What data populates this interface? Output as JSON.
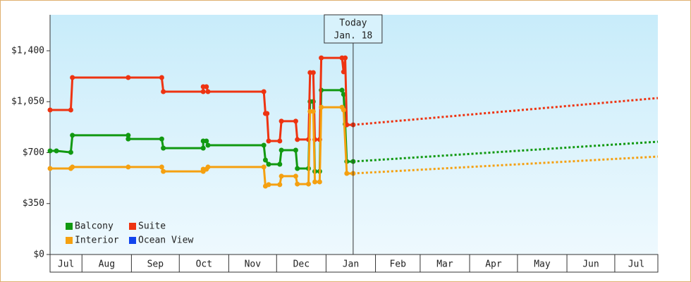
{
  "chart_data": {
    "type": "line",
    "xlim": [
      11,
      392
    ],
    "ylim": [
      0,
      1647
    ],
    "yticks": [
      {
        "value": 0,
        "label": "$0"
      },
      {
        "value": 350,
        "label": "$350"
      },
      {
        "value": 700,
        "label": "$700"
      },
      {
        "value": 1050,
        "label": "$1,050"
      },
      {
        "value": 1400,
        "label": "$1,400"
      }
    ],
    "xticks": [
      {
        "value": 0,
        "label": "Jul"
      },
      {
        "value": 31,
        "label": "Aug"
      },
      {
        "value": 62,
        "label": "Sep"
      },
      {
        "value": 92,
        "label": "Oct"
      },
      {
        "value": 123,
        "label": "Nov"
      },
      {
        "value": 153,
        "label": "Dec"
      },
      {
        "value": 184,
        "label": "Jan"
      },
      {
        "value": 215,
        "label": "Feb"
      },
      {
        "value": 243,
        "label": "Mar"
      },
      {
        "value": 274,
        "label": "Apr"
      },
      {
        "value": 304,
        "label": "May"
      },
      {
        "value": 335,
        "label": "Jun"
      },
      {
        "value": 365,
        "label": "Jul"
      }
    ],
    "annotation": {
      "x": 201,
      "lines": [
        "Today",
        "Jan. 18"
      ]
    },
    "legend": "lower left",
    "series": [
      {
        "name": "Balcony",
        "color": "#119911",
        "x": [
          11,
          15,
          24,
          25,
          60,
          60,
          81,
          82,
          107,
          107,
          109,
          110,
          145,
          146,
          148,
          155,
          156,
          165,
          166,
          173,
          174,
          176,
          177,
          180,
          181,
          194,
          195,
          196,
          197,
          201
        ],
        "values": [
          712,
          712,
          702,
          819,
          819,
          794,
          794,
          731,
          731,
          780,
          780,
          751,
          751,
          649,
          620,
          620,
          717,
          717,
          591,
          591,
          1051,
          1051,
          571,
          571,
          1129,
          1129,
          1100,
          896,
          639,
          639
        ],
        "projection": {
          "x": [
            201,
            392
          ],
          "values": [
            639,
            775
          ]
        }
      },
      {
        "name": "Suite",
        "color": "#ee3311",
        "x": [
          11,
          24,
          25,
          60,
          81,
          82,
          107,
          107,
          109,
          110,
          145,
          146,
          147,
          148,
          155,
          156,
          165,
          166,
          173,
          174,
          176,
          177,
          180,
          181,
          194,
          195,
          196,
          197,
          201
        ],
        "values": [
          993,
          993,
          1216,
          1216,
          1216,
          1119,
          1119,
          1153,
          1153,
          1119,
          1119,
          969,
          969,
          780,
          780,
          916,
          916,
          790,
          790,
          1250,
          1250,
          790,
          790,
          1351,
          1351,
          1255,
          1351,
          891,
          891
        ],
        "projection": {
          "x": [
            201,
            392
          ],
          "values": [
            891,
            1075
          ]
        }
      },
      {
        "name": "Interior",
        "color": "#f5a010",
        "x": [
          11,
          24,
          25,
          60,
          81,
          82,
          107,
          107,
          109,
          110,
          145,
          146,
          148,
          155,
          156,
          165,
          166,
          173,
          174,
          176,
          177,
          180,
          181,
          194,
          195,
          197,
          201
        ],
        "values": [
          591,
          591,
          601,
          601,
          601,
          571,
          571,
          586,
          586,
          601,
          601,
          470,
          480,
          480,
          538,
          538,
          484,
          484,
          983,
          983,
          499,
          499,
          1012,
          1012,
          993,
          557,
          557
        ],
        "projection": {
          "x": [
            201,
            392
          ],
          "values": [
            557,
            673
          ]
        }
      },
      {
        "name": "Ocean View",
        "color": "#1144ee",
        "x": [],
        "values": []
      }
    ]
  }
}
